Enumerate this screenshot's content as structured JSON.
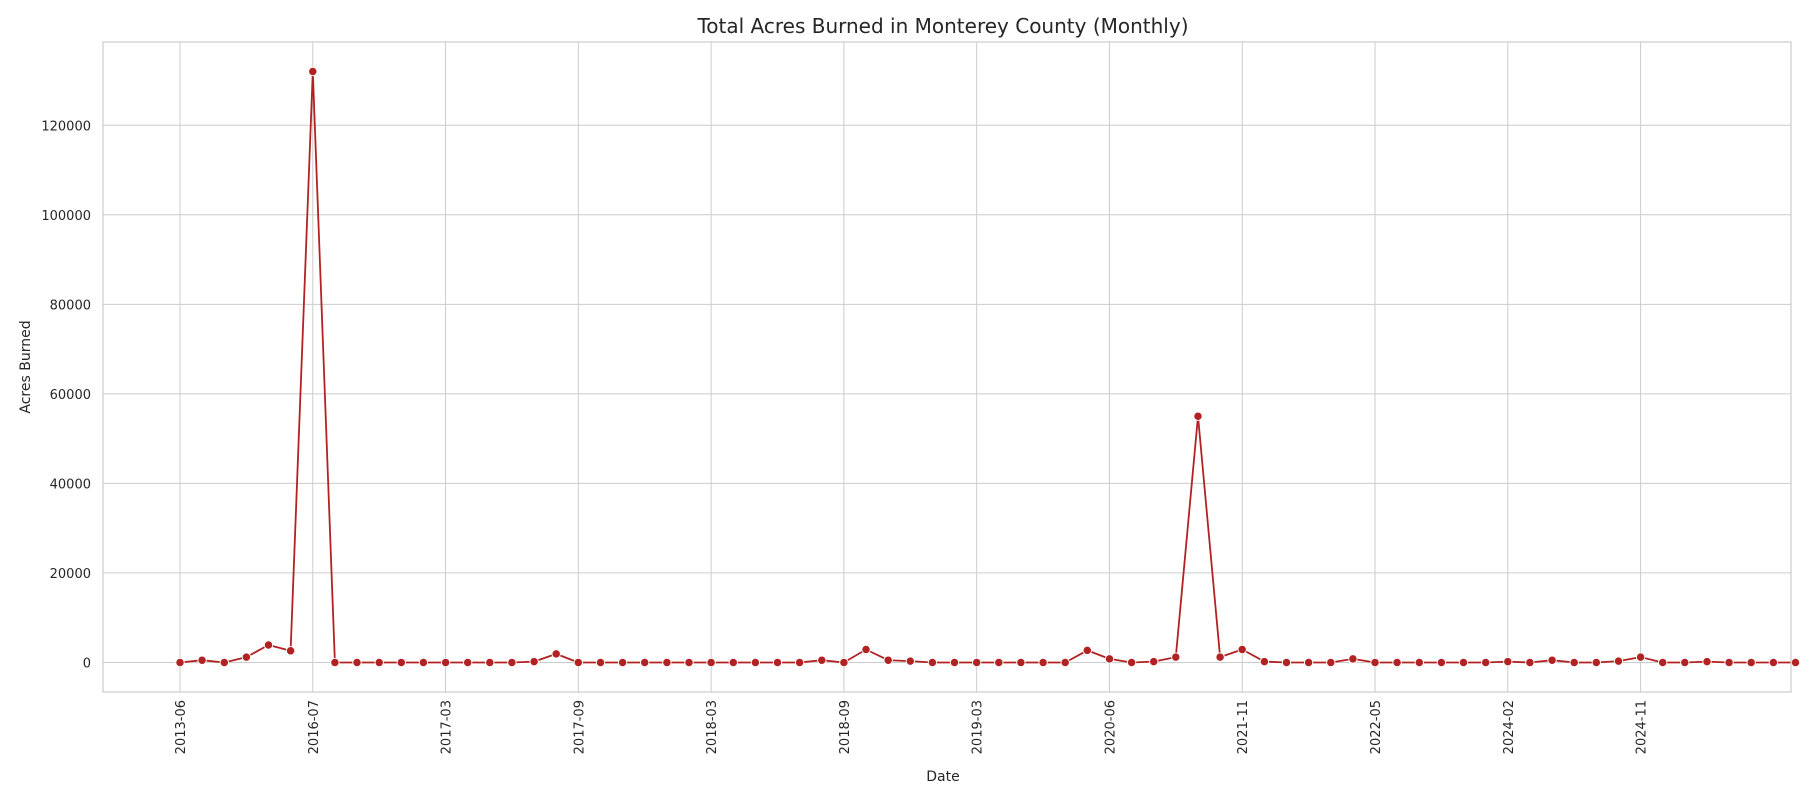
{
  "chart_data": {
    "type": "line",
    "title": "Total Acres Burned in Monterey County (Monthly)",
    "xlabel": "Date",
    "ylabel": "Acres Burned",
    "ylim": [
      -6600,
      138600
    ],
    "y_ticks": [
      0,
      20000,
      40000,
      60000,
      80000,
      100000,
      120000
    ],
    "x_tick_labels": [
      "2013-06",
      "2016-07",
      "2017-03",
      "2017-09",
      "2018-03",
      "2018-09",
      "2019-03",
      "2020-06",
      "2021-11",
      "2022-05",
      "2024-02",
      "2024-11"
    ],
    "x_tick_rotation_deg": 90,
    "grid": true,
    "colors": {
      "line": "#b22222",
      "grid": "#cccccc",
      "frame": "#cccccc",
      "text": "#262626"
    },
    "series": [
      {
        "values": [
          0,
          500,
          0,
          1200,
          3900,
          2600,
          132000,
          0,
          0,
          0,
          0,
          0,
          0,
          0,
          0,
          0,
          200,
          1900,
          0,
          0,
          0,
          0,
          0,
          0,
          0,
          0,
          0,
          0,
          0,
          500,
          0,
          2900,
          500,
          300,
          0,
          0,
          0,
          0,
          0,
          0,
          0,
          2700,
          800,
          0,
          200,
          1200,
          55000,
          1200,
          2900,
          200,
          0,
          0,
          0,
          800,
          0,
          0,
          0,
          0,
          0,
          0,
          200,
          0,
          500,
          0,
          0,
          300,
          1200,
          0,
          0,
          200,
          0,
          0,
          0,
          0
        ]
      }
    ]
  }
}
